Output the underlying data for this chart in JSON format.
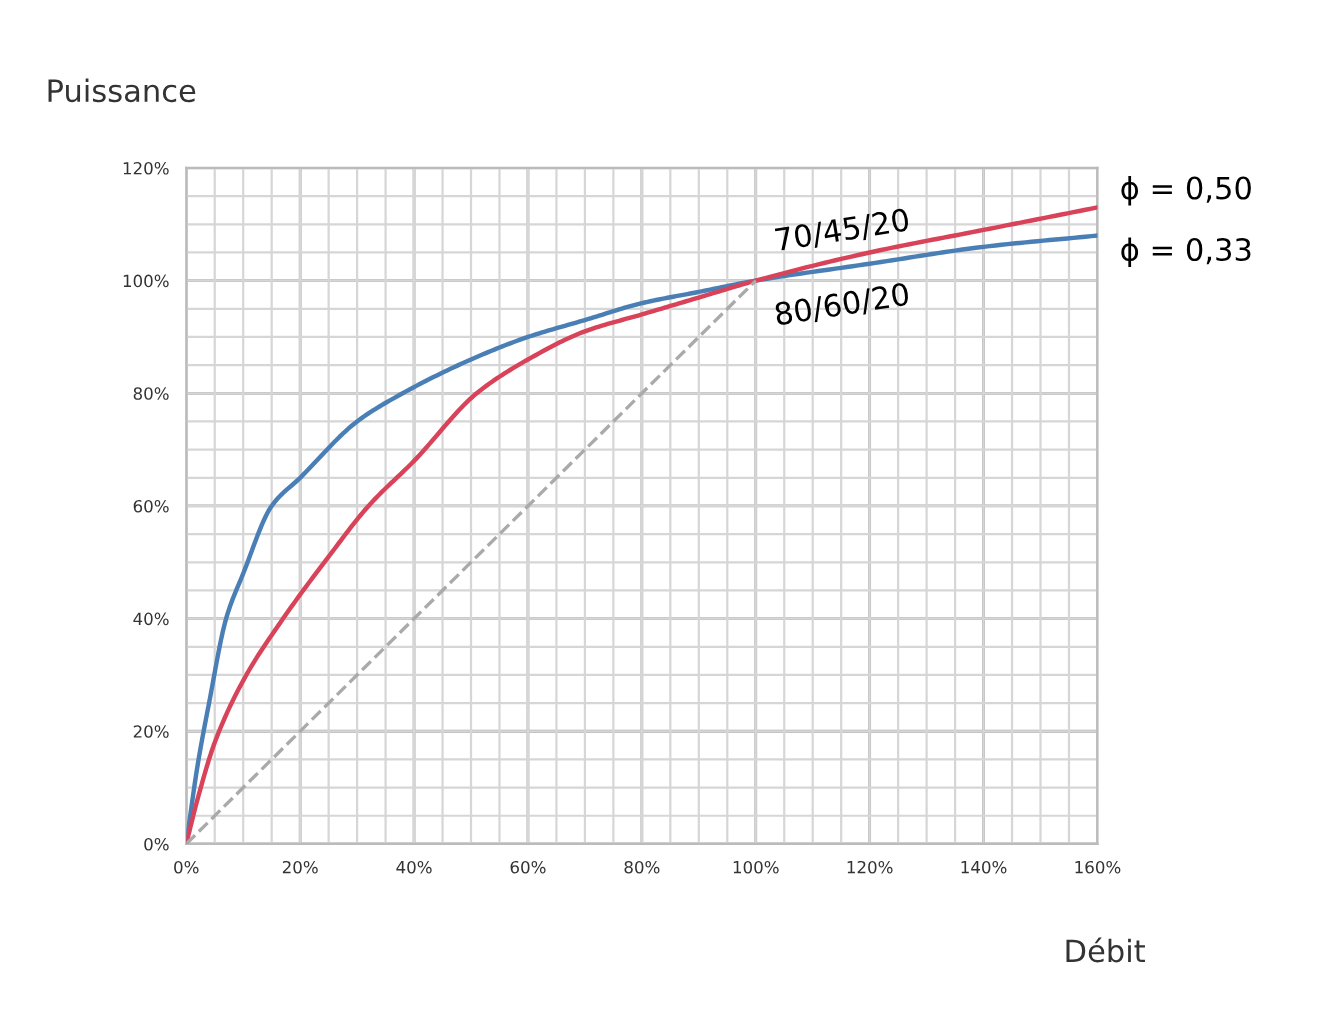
{
  "chart_data": {
    "type": "line",
    "ylabel": "Puissance",
    "xlabel": "Débit",
    "xlim": [
      0,
      160
    ],
    "ylim": [
      0,
      120
    ],
    "xticks": [
      {
        "value": 0,
        "label": "0%"
      },
      {
        "value": 5,
        "label": null
      },
      {
        "value": 10,
        "label": null
      },
      {
        "value": 15,
        "label": null
      },
      {
        "value": 20,
        "label": "20%"
      },
      {
        "value": 25,
        "label": null
      },
      {
        "value": 30,
        "label": null
      },
      {
        "value": 35,
        "label": null
      },
      {
        "value": 40,
        "label": "40%"
      },
      {
        "value": 45,
        "label": null
      },
      {
        "value": 50,
        "label": null
      },
      {
        "value": 55,
        "label": null
      },
      {
        "value": 60,
        "label": "60%"
      },
      {
        "value": 65,
        "label": null
      },
      {
        "value": 70,
        "label": null
      },
      {
        "value": 75,
        "label": null
      },
      {
        "value": 80,
        "label": "80%"
      },
      {
        "value": 85,
        "label": null
      },
      {
        "value": 90,
        "label": null
      },
      {
        "value": 95,
        "label": null
      },
      {
        "value": 100,
        "label": "100%"
      },
      {
        "value": 105,
        "label": null
      },
      {
        "value": 110,
        "label": null
      },
      {
        "value": 115,
        "label": null
      },
      {
        "value": 120,
        "label": "120%"
      },
      {
        "value": 125,
        "label": null
      },
      {
        "value": 130,
        "label": null
      },
      {
        "value": 135,
        "label": null
      },
      {
        "value": 140,
        "label": "140%"
      },
      {
        "value": 145,
        "label": null
      },
      {
        "value": 150,
        "label": null
      },
      {
        "value": 155,
        "label": null
      },
      {
        "value": 160,
        "label": "160%"
      }
    ],
    "yticks": [
      {
        "value": 0,
        "label": "0%"
      },
      {
        "value": 5,
        "label": null
      },
      {
        "value": 10,
        "label": null
      },
      {
        "value": 15,
        "label": null
      },
      {
        "value": 20,
        "label": "20%"
      },
      {
        "value": 25,
        "label": null
      },
      {
        "value": 30,
        "label": null
      },
      {
        "value": 35,
        "label": null
      },
      {
        "value": 40,
        "label": "40%"
      },
      {
        "value": 45,
        "label": null
      },
      {
        "value": 50,
        "label": null
      },
      {
        "value": 55,
        "label": null
      },
      {
        "value": 60,
        "label": "60%"
      },
      {
        "value": 65,
        "label": null
      },
      {
        "value": 70,
        "label": null
      },
      {
        "value": 75,
        "label": null
      },
      {
        "value": 80,
        "label": "80%"
      },
      {
        "value": 85,
        "label": null
      },
      {
        "value": 90,
        "label": null
      },
      {
        "value": 95,
        "label": null
      },
      {
        "value": 100,
        "label": "100%"
      },
      {
        "value": 105,
        "label": null
      },
      {
        "value": 110,
        "label": null
      },
      {
        "value": 115,
        "label": null
      },
      {
        "value": 120,
        "label": "120%"
      }
    ],
    "grid": true,
    "legend": false,
    "series": [
      {
        "name": "ϕ = 0,33",
        "color": "#4a7fb5",
        "x": [
          0,
          2,
          4,
          7,
          10,
          15,
          20,
          30,
          38,
          50,
          60,
          70,
          80,
          90,
          100,
          120,
          140,
          160
        ],
        "values": [
          0,
          14,
          25,
          40,
          48,
          60,
          65,
          75,
          80,
          86,
          90,
          93,
          96,
          98,
          100,
          103,
          106,
          108
        ]
      },
      {
        "name": "ϕ = 0,50",
        "color": "#d9435a",
        "x": [
          0,
          2,
          5,
          10,
          17,
          25,
          32,
          40,
          51,
          60,
          70,
          80,
          90,
          100,
          120,
          140,
          160
        ],
        "values": [
          0,
          8,
          18,
          29,
          40,
          51,
          60,
          68,
          80,
          86,
          91,
          94,
          97,
          100,
          105,
          109,
          113
        ]
      },
      {
        "color": "#aaaaaa",
        "line_style": "dashed",
        "x": [
          0,
          100
        ],
        "values": [
          0,
          100
        ]
      }
    ],
    "annotations": [
      "70/45/20",
      "80/60/20"
    ]
  }
}
